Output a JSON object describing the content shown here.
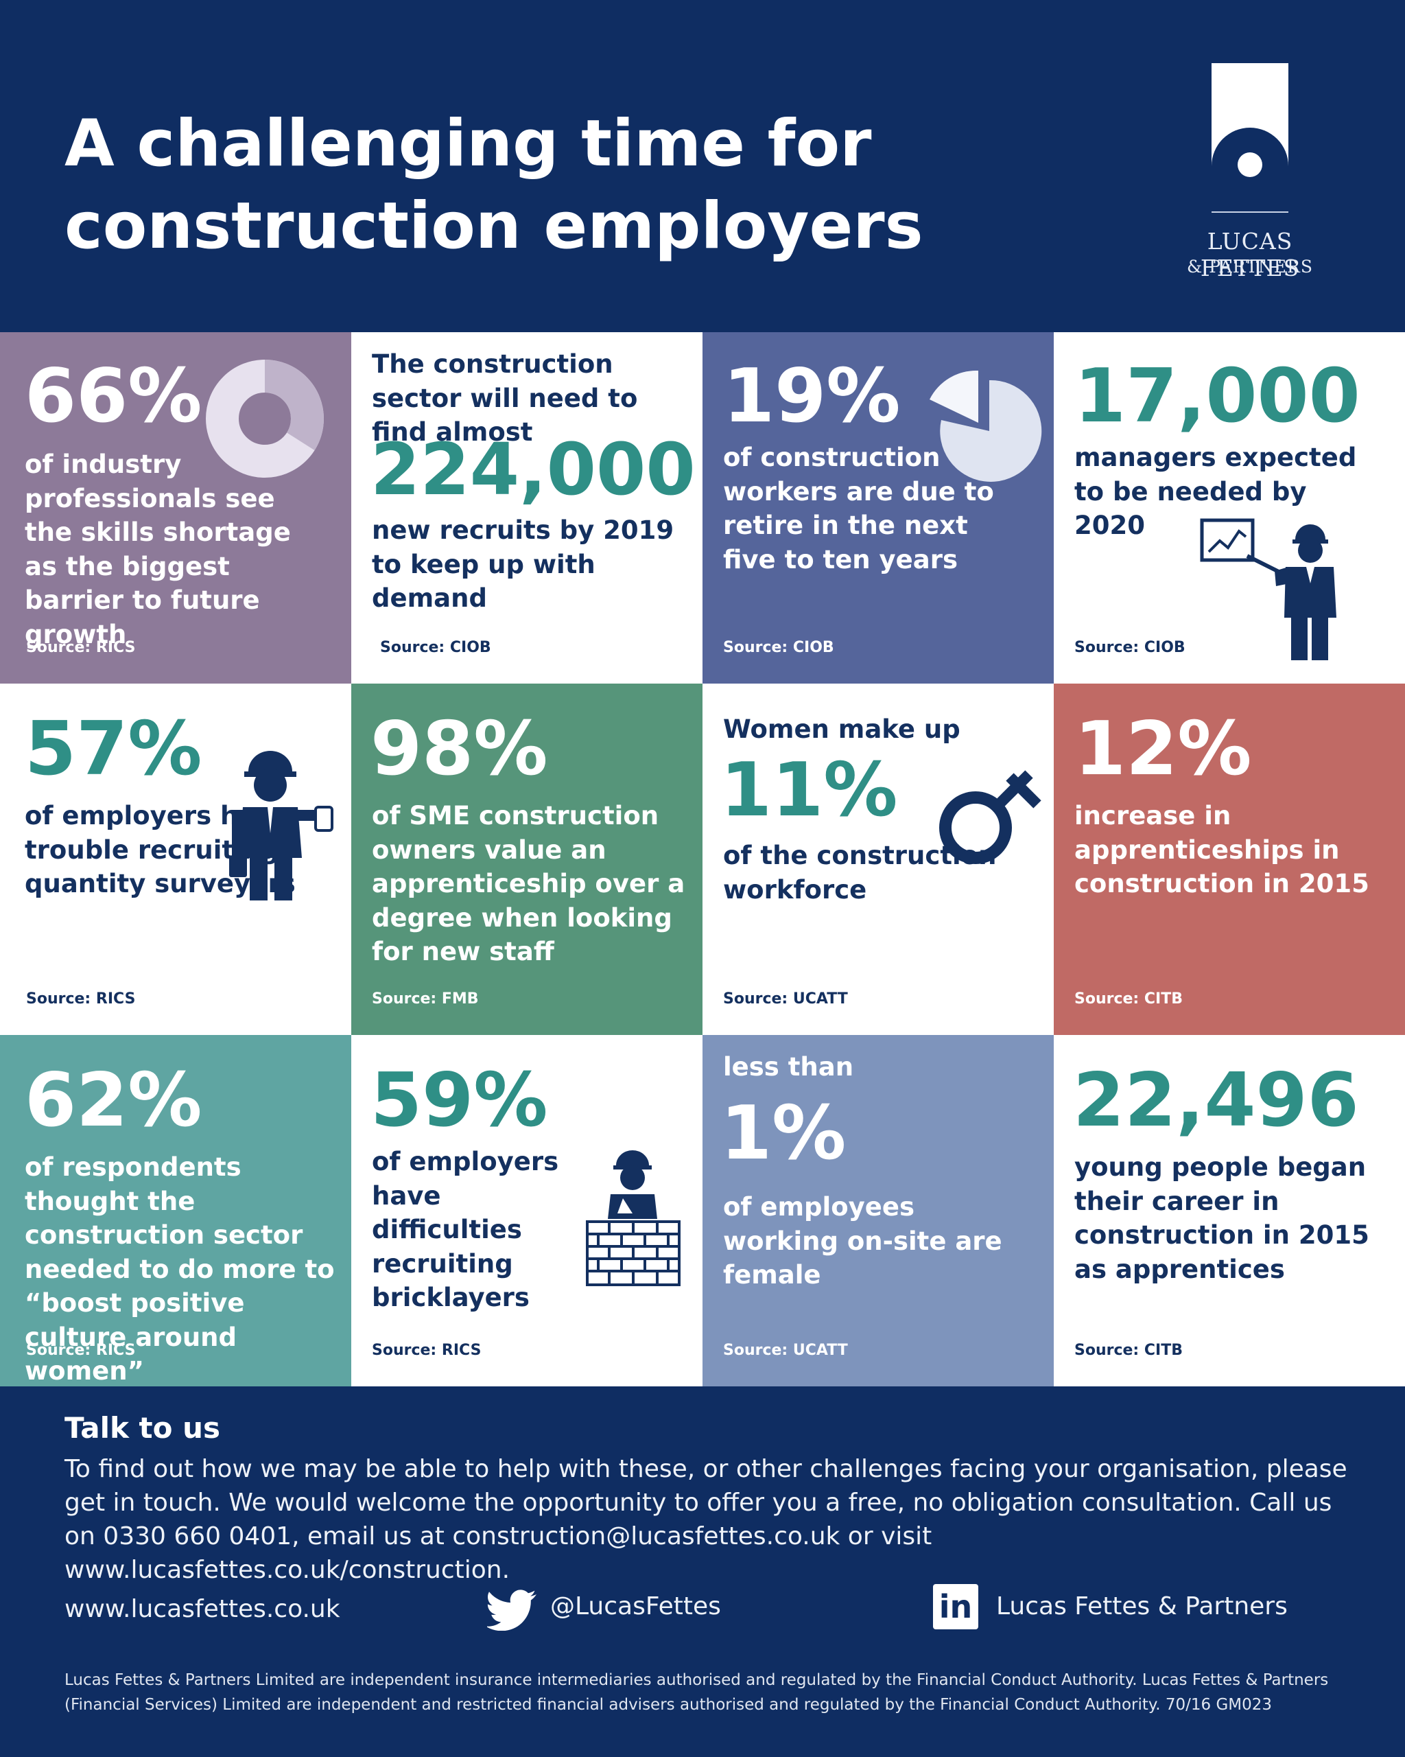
{
  "header": {
    "title_line1": "A challenging time for",
    "title_line2": "construction employers",
    "logo_name": "LUCAS  FETTES",
    "logo_sub": "& PARTNERS"
  },
  "cells": {
    "c1": {
      "stat": "66%",
      "text": "of industry professionals see the skills shortage as the biggest barrier to future growth",
      "source": "Source: RICS",
      "donut_value": 66
    },
    "c2": {
      "pre": "The construction sector will need to find almost",
      "stat": "224,000",
      "text": "new recruits by 2019 to keep up with demand",
      "source": "Source: CIOB"
    },
    "c3": {
      "stat": "19%",
      "text": "of construction workers are due to retire in the next five to ten years",
      "source": "Source: CIOB",
      "pie_value": 19
    },
    "c4": {
      "stat": "17,000",
      "text": "managers expected to be needed by 2020",
      "source": "Source: CIOB"
    },
    "c5": {
      "stat": "57%",
      "text": "of employers have trouble recruiting quantity surveyors",
      "source": "Source: RICS"
    },
    "c6": {
      "stat": "98%",
      "text": "of SME construction owners value an apprenticeship over a degree when looking for new staff",
      "source": "Source: FMB"
    },
    "c7": {
      "pre": "Women make up",
      "stat": "11%",
      "text": "of the construction workforce",
      "source": "Source: UCATT"
    },
    "c8": {
      "stat": "12%",
      "text": "increase in apprenticeships in construction in 2015",
      "source": "Source: CITB"
    },
    "c9": {
      "stat": "62%",
      "text": "of respondents thought the construction sector needed to do more to “boost positive culture around women”",
      "source": "Source: RICS"
    },
    "c10": {
      "stat": "59%",
      "text": "of employers have difficulties recruiting bricklayers",
      "source": "Source: RICS"
    },
    "c11": {
      "pre": "less than",
      "stat": "1%",
      "text": "of employees working on-site are female",
      "source": "Source: UCATT"
    },
    "c12": {
      "stat": "22,496",
      "text": "young people began their career in construction in 2015 as apprentices",
      "source": "Source: CITB"
    }
  },
  "footer": {
    "talk_title": "Talk to us",
    "talk_body": "To find out how we may be able to help with these, or other challenges facing your organisation, please get in touch. We would welcome the opportunity to offer you a free, no obligation consultation. Call us on 0330 660 0401, email us at construction@lucasfettes.co.uk or visit www.lucasfettes.co.uk/construction.",
    "website": "www.lucasfettes.co.uk",
    "twitter": "@LucasFettes",
    "linkedin_badge": "in",
    "linkedin": "Lucas Fettes & Partners",
    "legal": "Lucas Fettes & Partners Limited are independent insurance intermediaries authorised and regulated by the Financial Conduct Authority. Lucas Fettes & Partners (Financial Services) Limited are independent and restricted financial advisers authorised and regulated by the Financial Conduct Authority.  70/16 GM023"
  },
  "colors": {
    "navy": "#0f2d62",
    "purple": "#8d7a99",
    "slate": "#55659b",
    "green": "#56957a",
    "red": "#c06a65",
    "teal_bg": "#5fa5a2",
    "light_blue": "#7e94bc",
    "teal_text": "#2f8f86"
  }
}
